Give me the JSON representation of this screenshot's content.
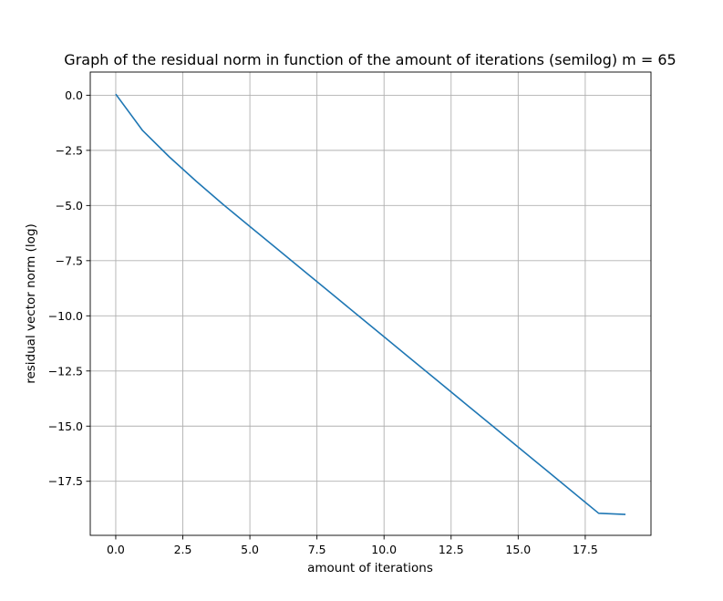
{
  "chart_data": {
    "type": "line",
    "title": "Graph of the residual norm in function of the amount of iterations (semilog) m = 65",
    "xlabel": "amount of iterations",
    "ylabel": "residual vector norm (log)",
    "xlim": [
      -0.95,
      19.95
    ],
    "ylim": [
      -19.95,
      1.05
    ],
    "xticks": [
      0.0,
      2.5,
      5.0,
      7.5,
      10.0,
      12.5,
      15.0,
      17.5
    ],
    "xtick_labels": [
      "0.0",
      "2.5",
      "5.0",
      "7.5",
      "10.0",
      "12.5",
      "15.0",
      "17.5"
    ],
    "yticks": [
      0.0,
      -2.5,
      -5.0,
      -7.5,
      -10.0,
      -12.5,
      -15.0,
      -17.5
    ],
    "ytick_labels": [
      "0.0",
      "−2.5",
      "−5.0",
      "−7.5",
      "−10.0",
      "−12.5",
      "−15.0",
      "−17.5"
    ],
    "grid": true,
    "line_color": "#1f77b4",
    "grid_color": "#b0b0b0",
    "series": [
      {
        "x": [
          0,
          1,
          2,
          3,
          4,
          5,
          6,
          7,
          8,
          9,
          10,
          11,
          12,
          13,
          14,
          15,
          16,
          17,
          18,
          19
        ],
        "values": [
          0.05,
          -1.6,
          -2.8,
          -3.9,
          -4.95,
          -5.95,
          -6.95,
          -7.95,
          -8.95,
          -9.95,
          -10.95,
          -11.95,
          -12.95,
          -13.95,
          -14.95,
          -15.95,
          -16.95,
          -17.95,
          -18.95,
          -19.0
        ]
      }
    ]
  }
}
